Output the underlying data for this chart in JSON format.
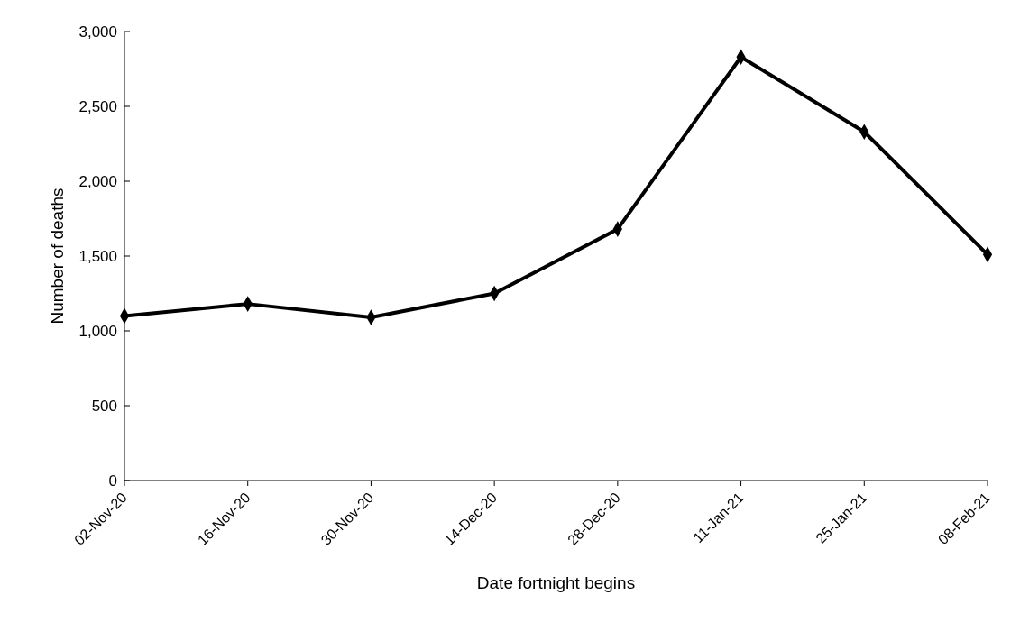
{
  "chart_data": {
    "type": "line",
    "xlabel": "Date fortnight begins",
    "ylabel": "Number of deaths",
    "categories": [
      "02-Nov-20",
      "16-Nov-20",
      "30-Nov-20",
      "14-Dec-20",
      "28-Dec-20",
      "11-Jan-21",
      "25-Jan-21",
      "08-Feb-21"
    ],
    "series": [
      {
        "color": "#000000",
        "values": [
          1100,
          1180,
          1090,
          1250,
          1680,
          2830,
          2330,
          1510
        ]
      }
    ],
    "ylim": [
      0,
      3000
    ],
    "yticks": [
      0,
      500,
      {
        "value": 1000,
        "label": "1,000"
      },
      {
        "value": 1500,
        "label": "1,500"
      },
      {
        "value": 2000,
        "label": "2,000"
      },
      {
        "value": 2500,
        "label": "2,500"
      },
      {
        "value": 3000,
        "label": "3,000"
      }
    ],
    "marker": "diamond",
    "line_style": "solid",
    "grid": false,
    "legend": false
  }
}
